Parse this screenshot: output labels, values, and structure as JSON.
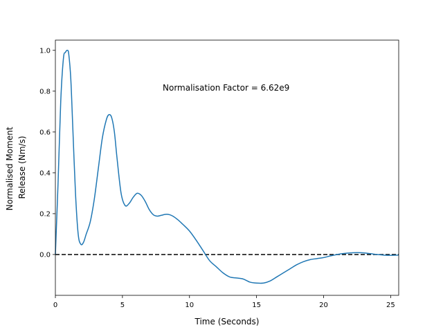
{
  "chart_data": {
    "type": "line",
    "title": "",
    "xlabel": "Time (Seconds)",
    "ylabel_lines": [
      "Normalised Moment",
      "Release (Nm/s)"
    ],
    "xlim": [
      0,
      25.6
    ],
    "ylim": [
      -0.2,
      1.05
    ],
    "xticks": [
      0,
      5,
      10,
      15,
      20,
      25
    ],
    "yticks": [
      0.0,
      0.2,
      0.4,
      0.6,
      0.8,
      1.0
    ],
    "xtick_labels": [
      "0",
      "5",
      "10",
      "15",
      "20",
      "25"
    ],
    "ytick_labels": [
      "0.0",
      "0.2",
      "0.4",
      "0.6",
      "0.8",
      "1.0"
    ],
    "grid": false,
    "annotation": {
      "text": "Normalisation Factor = 6.62e9",
      "x": 8.0,
      "y": 0.82
    },
    "reference_line": {
      "y": 0.0,
      "style": "dashed",
      "color": "#000000"
    },
    "series": [
      {
        "color": "#1f77b4",
        "x": [
          0.0,
          0.2,
          0.4,
          0.6,
          0.75,
          0.9,
          1.0,
          1.15,
          1.3,
          1.5,
          1.7,
          1.9,
          2.1,
          2.3,
          2.6,
          2.9,
          3.2,
          3.5,
          3.8,
          4.0,
          4.2,
          4.4,
          4.6,
          4.9,
          5.2,
          5.5,
          5.8,
          6.1,
          6.4,
          6.7,
          7.0,
          7.3,
          7.6,
          7.9,
          8.3,
          8.7,
          9.1,
          9.5,
          10.0,
          10.5,
          11.0,
          11.5,
          12.0,
          12.5,
          13.0,
          13.5,
          14.0,
          14.5,
          15.0,
          15.5,
          16.0,
          16.5,
          17.0,
          17.5,
          18.0,
          18.5,
          19.0,
          19.5,
          20.0,
          20.5,
          21.0,
          21.5,
          22.0,
          22.5,
          23.0,
          23.5,
          24.0,
          24.5,
          25.0,
          25.6
        ],
        "y": [
          0.0,
          0.35,
          0.75,
          0.96,
          0.99,
          1.0,
          0.98,
          0.86,
          0.62,
          0.3,
          0.1,
          0.05,
          0.06,
          0.1,
          0.16,
          0.27,
          0.42,
          0.57,
          0.66,
          0.685,
          0.67,
          0.6,
          0.47,
          0.3,
          0.24,
          0.25,
          0.28,
          0.3,
          0.29,
          0.26,
          0.22,
          0.195,
          0.188,
          0.192,
          0.197,
          0.19,
          0.172,
          0.148,
          0.115,
          0.07,
          0.02,
          -0.03,
          -0.06,
          -0.09,
          -0.11,
          -0.115,
          -0.12,
          -0.135,
          -0.14,
          -0.14,
          -0.13,
          -0.11,
          -0.09,
          -0.07,
          -0.05,
          -0.035,
          -0.025,
          -0.02,
          -0.015,
          -0.007,
          0.0,
          0.005,
          0.008,
          0.009,
          0.008,
          0.004,
          0.0,
          -0.003,
          -0.004,
          -0.003
        ]
      }
    ]
  }
}
